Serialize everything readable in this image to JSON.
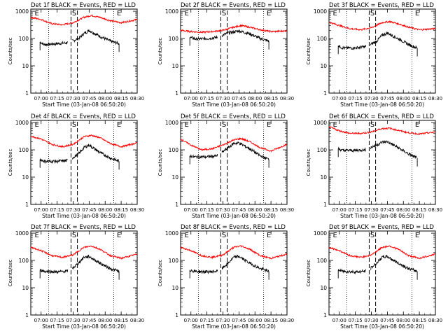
{
  "figure": {
    "ylabel": "Counts/sec",
    "xlabel": "Start Time (03-Jan-08 06:50:20)",
    "x_tick_labels": [
      "07:00",
      "07:15",
      "07:30",
      "07:45",
      "08:00",
      "08:15",
      "08:30"
    ],
    "y_tick_labels": [
      "1",
      "10",
      "100",
      "1000"
    ],
    "markers": [
      {
        "label": "E",
        "time": "06:56"
      },
      {
        "label": "S",
        "time": "07:31"
      },
      {
        "label": "E",
        "time": "08:13"
      }
    ],
    "dotted_lines": [
      "07:07",
      "08:08"
    ],
    "dashed_lines": [
      "07:28",
      "07:34"
    ],
    "colors": {
      "events": "#000000",
      "lld": "#ff0000"
    }
  },
  "chart_data": [
    {
      "type": "line",
      "title": "Det 1f BLACK = Events, RED = LLD",
      "xlim": [
        "06:50:20",
        "08:30"
      ],
      "ylim": [
        1,
        1200
      ],
      "yscale": "log",
      "series": [
        {
          "name": "Events",
          "x": [
            "06:59",
            "07:03",
            "07:15",
            "07:24",
            "07:29",
            "07:35",
            "07:40",
            "07:45",
            "07:55",
            "08:05",
            "08:13"
          ],
          "y": [
            75,
            60,
            65,
            70,
            80,
            100,
            150,
            200,
            120,
            80,
            65
          ]
        },
        {
          "name": "LLD",
          "x": [
            "06:50:20",
            "07:00",
            "07:10",
            "07:20",
            "07:30",
            "07:40",
            "07:47",
            "07:55",
            "08:05",
            "08:15",
            "08:30"
          ],
          "y": [
            600,
            500,
            350,
            320,
            380,
            600,
            700,
            600,
            450,
            380,
            500
          ]
        }
      ]
    },
    {
      "type": "line",
      "title": "Det 2f BLACK = Events, RED = LLD",
      "xlim": [
        "06:50:20",
        "08:30"
      ],
      "ylim": [
        1,
        1200
      ],
      "yscale": "log",
      "series": [
        {
          "name": "Events",
          "x": [
            "06:59",
            "07:05",
            "07:15",
            "07:25",
            "07:29",
            "07:35",
            "07:45",
            "07:55",
            "08:05",
            "08:13"
          ],
          "y": [
            110,
            95,
            100,
            110,
            130,
            160,
            190,
            150,
            100,
            80
          ]
        },
        {
          "name": "LLD",
          "x": [
            "06:50:20",
            "07:00",
            "07:10",
            "07:20",
            "07:30",
            "07:40",
            "07:47",
            "07:55",
            "08:05",
            "08:15",
            "08:30"
          ],
          "y": [
            200,
            180,
            170,
            180,
            200,
            260,
            300,
            260,
            210,
            180,
            190
          ]
        }
      ]
    },
    {
      "type": "line",
      "title": "Det 3f BLACK = Events, RED = LLD",
      "xlim": [
        "06:50:20",
        "08:30"
      ],
      "ylim": [
        1,
        1200
      ],
      "yscale": "log",
      "series": [
        {
          "name": "Events",
          "x": [
            "06:59",
            "07:03",
            "07:15",
            "07:24",
            "07:29",
            "07:35",
            "07:40",
            "07:45",
            "07:55",
            "08:05",
            "08:13"
          ],
          "y": [
            55,
            45,
            45,
            50,
            60,
            80,
            130,
            160,
            100,
            60,
            45
          ]
        },
        {
          "name": "LLD",
          "x": [
            "06:50:20",
            "07:00",
            "07:10",
            "07:20",
            "07:30",
            "07:40",
            "07:47",
            "07:55",
            "08:05",
            "08:15",
            "08:30"
          ],
          "y": [
            400,
            300,
            230,
            210,
            250,
            380,
            420,
            350,
            260,
            210,
            230
          ]
        }
      ]
    },
    {
      "type": "line",
      "title": "Det 4f BLACK = Events, RED = LLD",
      "xlim": [
        "06:50:20",
        "08:30"
      ],
      "ylim": [
        1,
        1200
      ],
      "yscale": "log",
      "series": [
        {
          "name": "Events",
          "x": [
            "06:59",
            "07:03",
            "07:15",
            "07:24",
            "07:29",
            "07:35",
            "07:40",
            "07:45",
            "07:55",
            "08:05",
            "08:13"
          ],
          "y": [
            45,
            38,
            38,
            40,
            50,
            70,
            120,
            150,
            80,
            50,
            38
          ]
        },
        {
          "name": "LLD",
          "x": [
            "06:50:20",
            "07:00",
            "07:10",
            "07:20",
            "07:30",
            "07:40",
            "07:47",
            "07:55",
            "08:05",
            "08:15",
            "08:30"
          ],
          "y": [
            320,
            250,
            160,
            130,
            160,
            300,
            340,
            280,
            170,
            130,
            180
          ]
        }
      ]
    },
    {
      "type": "line",
      "title": "Det 5f BLACK = Events, RED = LLD",
      "xlim": [
        "06:50:20",
        "08:30"
      ],
      "ylim": [
        1,
        1200
      ],
      "yscale": "log",
      "series": [
        {
          "name": "Events",
          "x": [
            "06:59",
            "07:03",
            "07:15",
            "07:24",
            "07:29",
            "07:35",
            "07:40",
            "07:45",
            "07:55",
            "08:05",
            "08:13"
          ],
          "y": [
            60,
            55,
            55,
            60,
            80,
            120,
            170,
            180,
            110,
            60,
            45
          ]
        },
        {
          "name": "LLD",
          "x": [
            "06:50:20",
            "07:00",
            "07:10",
            "07:20",
            "07:30",
            "07:40",
            "07:47",
            "07:55",
            "08:05",
            "08:15",
            "08:30"
          ],
          "y": [
            250,
            150,
            100,
            110,
            150,
            230,
            260,
            200,
            120,
            90,
            160
          ]
        }
      ]
    },
    {
      "type": "line",
      "title": "Det 6f BLACK = Events, RED = LLD",
      "xlim": [
        "06:50:20",
        "08:30"
      ],
      "ylim": [
        1,
        1200
      ],
      "yscale": "log",
      "series": [
        {
          "name": "Events",
          "x": [
            "06:59",
            "07:03",
            "07:15",
            "07:24",
            "07:29",
            "07:35",
            "07:40",
            "07:45",
            "07:55",
            "08:05",
            "08:13"
          ],
          "y": [
            110,
            95,
            95,
            100,
            120,
            150,
            190,
            200,
            120,
            70,
            50
          ]
        },
        {
          "name": "LLD",
          "x": [
            "06:50:20",
            "07:00",
            "07:10",
            "07:20",
            "07:30",
            "07:40",
            "07:47",
            "07:55",
            "08:05",
            "08:15",
            "08:30"
          ],
          "y": [
            700,
            500,
            400,
            400,
            450,
            600,
            620,
            520,
            420,
            380,
            450
          ]
        }
      ]
    },
    {
      "type": "line",
      "title": "Det 7f BLACK = Events, RED = LLD",
      "xlim": [
        "06:50:20",
        "08:30"
      ],
      "ylim": [
        1,
        1200
      ],
      "yscale": "log",
      "series": [
        {
          "name": "Events",
          "x": [
            "06:59",
            "07:03",
            "07:15",
            "07:24",
            "07:29",
            "07:35",
            "07:40",
            "07:45",
            "07:55",
            "08:05",
            "08:13"
          ],
          "y": [
            45,
            40,
            38,
            40,
            50,
            80,
            130,
            140,
            80,
            50,
            40
          ]
        },
        {
          "name": "LLD",
          "x": [
            "06:50:20",
            "07:00",
            "07:10",
            "07:20",
            "07:30",
            "07:40",
            "07:47",
            "07:55",
            "08:05",
            "08:15",
            "08:30"
          ],
          "y": [
            300,
            230,
            150,
            130,
            160,
            300,
            340,
            260,
            150,
            120,
            170
          ]
        }
      ]
    },
    {
      "type": "line",
      "title": "Det 8f BLACK = Events, RED = LLD",
      "xlim": [
        "06:50:20",
        "08:30"
      ],
      "ylim": [
        1,
        1200
      ],
      "yscale": "log",
      "series": [
        {
          "name": "Events",
          "x": [
            "06:59",
            "07:03",
            "07:15",
            "07:24",
            "07:29",
            "07:35",
            "07:40",
            "07:45",
            "07:55",
            "08:05",
            "08:13"
          ],
          "y": [
            45,
            40,
            38,
            40,
            50,
            80,
            130,
            140,
            80,
            50,
            40
          ]
        },
        {
          "name": "LLD",
          "x": [
            "06:50:20",
            "07:00",
            "07:10",
            "07:20",
            "07:30",
            "07:40",
            "07:47",
            "07:55",
            "08:05",
            "08:15",
            "08:30"
          ],
          "y": [
            300,
            230,
            150,
            130,
            160,
            300,
            340,
            260,
            150,
            120,
            170
          ]
        }
      ]
    },
    {
      "type": "line",
      "title": "Det 9f BLACK = Events, RED = LLD",
      "xlim": [
        "06:50:20",
        "08:30"
      ],
      "ylim": [
        1,
        1200
      ],
      "yscale": "log",
      "series": [
        {
          "name": "Events",
          "x": [
            "06:59",
            "07:03",
            "07:15",
            "07:24",
            "07:29",
            "07:35",
            "07:40",
            "07:45",
            "07:55",
            "08:05",
            "08:13"
          ],
          "y": [
            45,
            40,
            38,
            40,
            50,
            80,
            130,
            140,
            80,
            50,
            40
          ]
        },
        {
          "name": "LLD",
          "x": [
            "06:50:20",
            "07:00",
            "07:10",
            "07:20",
            "07:30",
            "07:40",
            "07:47",
            "07:55",
            "08:05",
            "08:15",
            "08:30"
          ],
          "y": [
            300,
            230,
            150,
            130,
            160,
            300,
            340,
            260,
            150,
            120,
            170
          ]
        }
      ]
    }
  ]
}
